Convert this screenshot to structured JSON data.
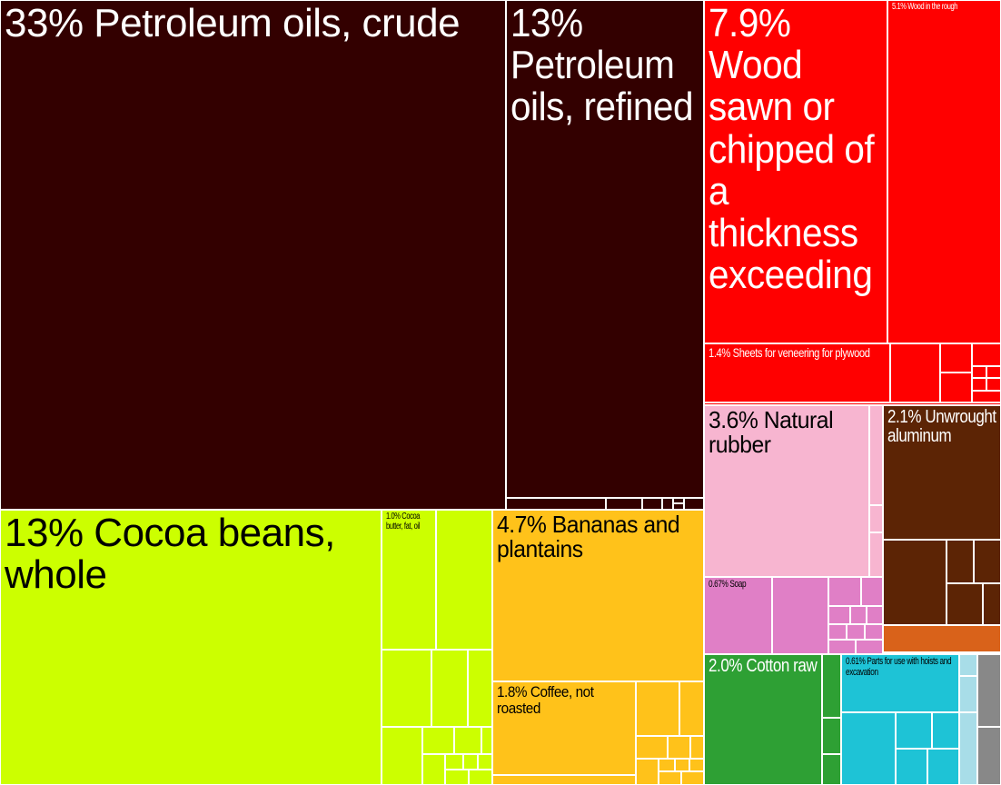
{
  "chart_data": {
    "type": "treemap",
    "labeled_items": [
      {
        "label": "33% Petroleum oils, crude",
        "value": 33,
        "color": "#330000"
      },
      {
        "label": "13% Petroleum oils, refined",
        "value": 13,
        "color": "#330000"
      },
      {
        "label": "7.9% Wood sawn or chipped of a thickness exceeding",
        "value": 7.9,
        "color": "#ff0000"
      },
      {
        "label": "5.1% Wood in the rough",
        "value": 5.1,
        "color": "#ff0000"
      },
      {
        "label": "1.4% Sheets for veneering for plywood",
        "value": 1.4,
        "color": "#ff0000"
      },
      {
        "label": "13% Cocoa beans, whole",
        "value": 13,
        "color": "#ccff00"
      },
      {
        "label": "1.0% Cocoa butter, fat, oil",
        "value": 1.0,
        "color": "#ccff00"
      },
      {
        "label": "4.7% Bananas and plantains",
        "value": 4.7,
        "color": "#ffc21a"
      },
      {
        "label": "1.8% Coffee, not roasted",
        "value": 1.8,
        "color": "#ffc21a"
      },
      {
        "label": "3.6% Natural rubber",
        "value": 3.6,
        "color": "#f7b5d0"
      },
      {
        "label": "0.67% Soap",
        "value": 0.67,
        "color": "#e07fc6"
      },
      {
        "label": "2.1% Unwrought aluminum",
        "value": 2.1,
        "color": "#5c2405"
      },
      {
        "label": "2.0% Cotton raw",
        "value": 2.0,
        "color": "#2ea034"
      },
      {
        "label": "0.61% Parts for use with hoists and excavation",
        "value": 0.61,
        "color": "#1ec3d6"
      }
    ]
  }
}
